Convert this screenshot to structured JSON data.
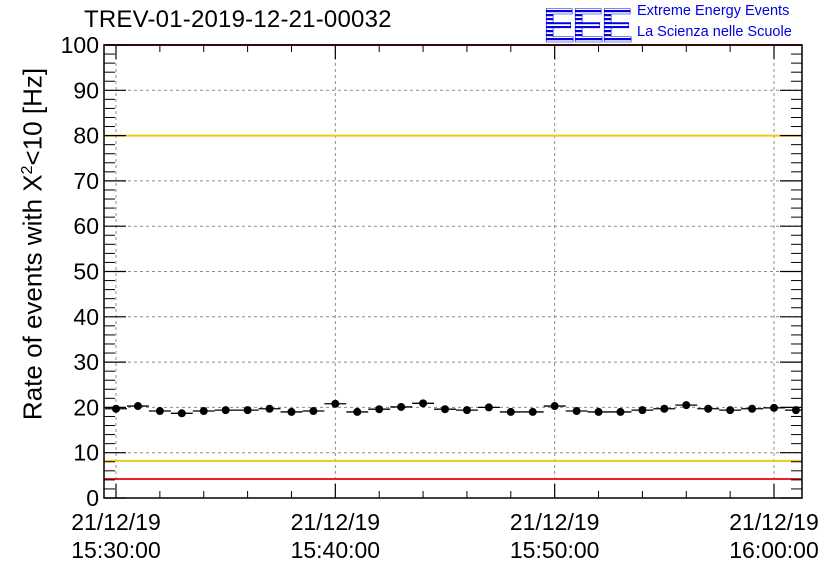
{
  "colors": {
    "axis": "#000000",
    "grid": "#8c8c8c",
    "red_line": "#e8202a",
    "yellow_line": "#f0c818",
    "points": "#000000",
    "logo_blue": "#0000e0"
  },
  "logo": {
    "mark": "EEE",
    "line1": "Extreme Energy Events",
    "line2": "La Scienza nelle Scuole"
  },
  "chart_data": {
    "type": "scatter",
    "title": "TREV-01-2019-12-21-00032",
    "ylabel_prefix": "Rate of events with X",
    "ylabel_sup": "2",
    "ylabel_suffix": "<10 [Hz]",
    "xlabel": "",
    "ylim": [
      0,
      100
    ],
    "yticks": [
      "0",
      "10",
      "20",
      "30",
      "40",
      "50",
      "60",
      "70",
      "80",
      "90",
      "100"
    ],
    "xlim_minutes": [
      0,
      31.8
    ],
    "xticks": [
      {
        "minute": 0,
        "date": "21/12/19",
        "time": "15:30:00"
      },
      {
        "minute": 10,
        "date": "21/12/19",
        "time": "15:40:00"
      },
      {
        "minute": 20,
        "date": "21/12/19",
        "time": "15:50:00"
      },
      {
        "minute": 30,
        "date": "21/12/19",
        "time": "16:00:00"
      }
    ],
    "grid": true,
    "reference_lines": [
      {
        "name": "upper-red",
        "value": 100,
        "color": "red"
      },
      {
        "name": "upper-yellow",
        "value": 80,
        "color": "yellow"
      },
      {
        "name": "lower-yellow",
        "value": 8.2,
        "color": "yellow"
      },
      {
        "name": "lower-red",
        "value": 4.2,
        "color": "red"
      }
    ],
    "bin_width_minutes": 1,
    "series": [
      {
        "name": "rate",
        "x_minutes": [
          0,
          1,
          2,
          3,
          4,
          5,
          6,
          7,
          8,
          9,
          10,
          11,
          12,
          13,
          14,
          15,
          16,
          17,
          18,
          19,
          20,
          21,
          22,
          23,
          24,
          25,
          26,
          27,
          28,
          29,
          30,
          31
        ],
        "values": [
          19.7,
          20.3,
          19.2,
          18.7,
          19.2,
          19.4,
          19.4,
          19.7,
          19.0,
          19.2,
          20.8,
          19.0,
          19.6,
          20.1,
          20.9,
          19.6,
          19.4,
          20.0,
          19.0,
          19.0,
          20.3,
          19.2,
          19.0,
          19.0,
          19.4,
          19.7,
          20.5,
          19.7,
          19.4,
          19.7,
          19.9,
          19.4
        ]
      }
    ]
  }
}
